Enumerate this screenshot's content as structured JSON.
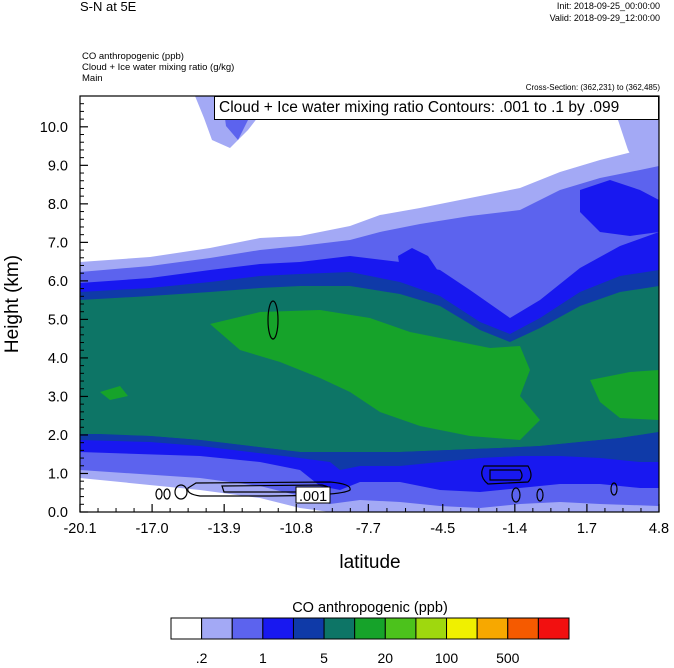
{
  "header": {
    "title": "S-N at 5E",
    "init": "Init: 2018-09-25_00:00:00",
    "valid": "Valid: 2018-09-29_12:00:00",
    "field1": "CO anthropogenic   (ppb)",
    "field2": "Cloud + Ice water mixing ratio   (g/kg)",
    "field3": "Main",
    "cross_section": "Cross-Section: (362,231) to (362,485)",
    "contour_info": "Cloud + Ice water mixing ratio Contours: .001 to .1 by .099"
  },
  "colors": {
    "levels": [
      "#ffffff",
      "#a3a9f5",
      "#5c63ee",
      "#1818f0",
      "#0f3aa8",
      "#0d7566",
      "#16a32a",
      "#4cc21c",
      "#9fd80e",
      "#f0f000",
      "#f7a800",
      "#f55a00",
      "#f21010"
    ]
  },
  "chart_data": {
    "type": "contour-cross-section",
    "xlabel": "latitude",
    "ylabel": "Height (km)",
    "xlim": [
      -20.1,
      4.8
    ],
    "ylim": [
      0.0,
      10.8
    ],
    "x_ticks": [
      "-20.1",
      "-17.0",
      "-13.9",
      "-10.8",
      "-7.7",
      "-4.5",
      "-1.4",
      "1.7",
      "4.8"
    ],
    "x_tick_values": [
      -20.1,
      -17.0,
      -13.9,
      -10.8,
      -7.7,
      -4.5,
      -1.4,
      1.7,
      4.8
    ],
    "y_ticks": [
      "0.0",
      "1.0",
      "2.0",
      "3.0",
      "4.0",
      "5.0",
      "6.0",
      "7.0",
      "8.0",
      "9.0",
      "10.0"
    ],
    "y_tick_values": [
      0,
      1,
      2,
      3,
      4,
      5,
      6,
      7,
      8,
      9,
      10
    ],
    "contour_label": ".001",
    "colorbar": {
      "title": "CO anthropogenic  (ppb)",
      "labels": [
        ".2",
        "1",
        "5",
        "20",
        "100",
        "500"
      ]
    }
  }
}
